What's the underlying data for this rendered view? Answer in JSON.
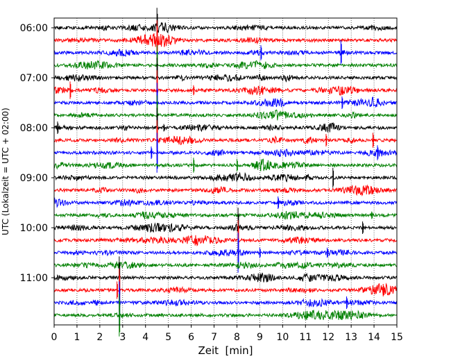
{
  "chart_data": {
    "type": "line",
    "title": "",
    "xlabel": "Zeit  [min]",
    "ylabel": "UTC (Lokalzeit = UTC + 02:00)",
    "xlim": [
      0,
      15
    ],
    "x_ticks": [
      0,
      1,
      2,
      3,
      4,
      5,
      6,
      7,
      8,
      9,
      10,
      11,
      12,
      13,
      14,
      15
    ],
    "y_ticks": [
      "06:00",
      "07:00",
      "08:00",
      "09:00",
      "10:00",
      "11:00"
    ],
    "grid": "vertical dotted lines at each minute",
    "traces_per_hour": 4,
    "color_cycle": [
      "#000000",
      "#ff0000",
      "#0000ff",
      "#008000"
    ],
    "series": [
      {
        "start": "06:00",
        "spikes": [
          [
            4.5,
            1.6
          ]
        ]
      },
      {
        "start": "06:15",
        "spikes": [
          [
            4.5,
            1.6
          ]
        ]
      },
      {
        "start": "06:30",
        "spikes": [
          [
            9.05,
            0.6
          ],
          [
            12.55,
            1.0
          ]
        ]
      },
      {
        "start": "06:45",
        "spikes": [
          [
            4.5,
            1.6
          ]
        ]
      },
      {
        "start": "07:00",
        "spikes": [
          [
            4.5,
            1.6
          ]
        ]
      },
      {
        "start": "07:15",
        "spikes": [
          [
            0.7,
            0.7
          ],
          [
            4.5,
            1.6
          ],
          [
            6.1,
            0.4
          ]
        ]
      },
      {
        "start": "07:30",
        "spikes": [
          [
            4.5,
            1.6
          ],
          [
            12.6,
            0.5
          ]
        ]
      },
      {
        "start": "07:45",
        "spikes": [
          [
            4.5,
            1.6
          ]
        ]
      },
      {
        "start": "08:00",
        "spikes": [
          [
            0.15,
            0.5
          ],
          [
            4.5,
            1.6
          ],
          [
            4.8,
            0.3
          ]
        ]
      },
      {
        "start": "08:15",
        "spikes": [
          [
            4.5,
            1.6
          ],
          [
            11.9,
            0.5
          ],
          [
            13.95,
            0.6
          ]
        ]
      },
      {
        "start": "08:30",
        "spikes": [
          [
            4.25,
            0.5
          ],
          [
            4.5,
            1.6
          ],
          [
            14.15,
            0.6
          ]
        ]
      },
      {
        "start": "08:45",
        "spikes": [
          [
            6.1,
            0.6
          ],
          [
            8.0,
            0.5
          ]
        ]
      },
      {
        "start": "09:00",
        "spikes": [
          [
            12.2,
            0.8
          ]
        ]
      },
      {
        "start": "09:15",
        "spikes": []
      },
      {
        "start": "09:30",
        "spikes": [
          [
            9.8,
            0.5
          ]
        ]
      },
      {
        "start": "09:45",
        "spikes": [
          [
            13.9,
            0.3
          ]
        ]
      },
      {
        "start": "10:00",
        "spikes": [
          [
            8.05,
            1.6
          ],
          [
            13.5,
            0.5
          ]
        ]
      },
      {
        "start": "10:15",
        "spikes": [
          [
            8.05,
            1.6
          ]
        ]
      },
      {
        "start": "10:30",
        "spikes": [
          [
            8.05,
            1.6
          ],
          [
            9.0,
            0.4
          ],
          [
            11.95,
            0.4
          ]
        ]
      },
      {
        "start": "10:45",
        "spikes": []
      },
      {
        "start": "11:00",
        "spikes": [
          [
            2.85,
            1.7
          ]
        ]
      },
      {
        "start": "11:15",
        "spikes": [
          [
            2.75,
            0.7
          ],
          [
            2.85,
            1.7
          ],
          [
            14.4,
            0.5
          ]
        ]
      },
      {
        "start": "11:30",
        "spikes": [
          [
            2.85,
            1.7
          ],
          [
            12.8,
            0.5
          ]
        ]
      },
      {
        "start": "11:45",
        "spikes": [
          [
            2.85,
            1.7
          ]
        ]
      }
    ]
  }
}
